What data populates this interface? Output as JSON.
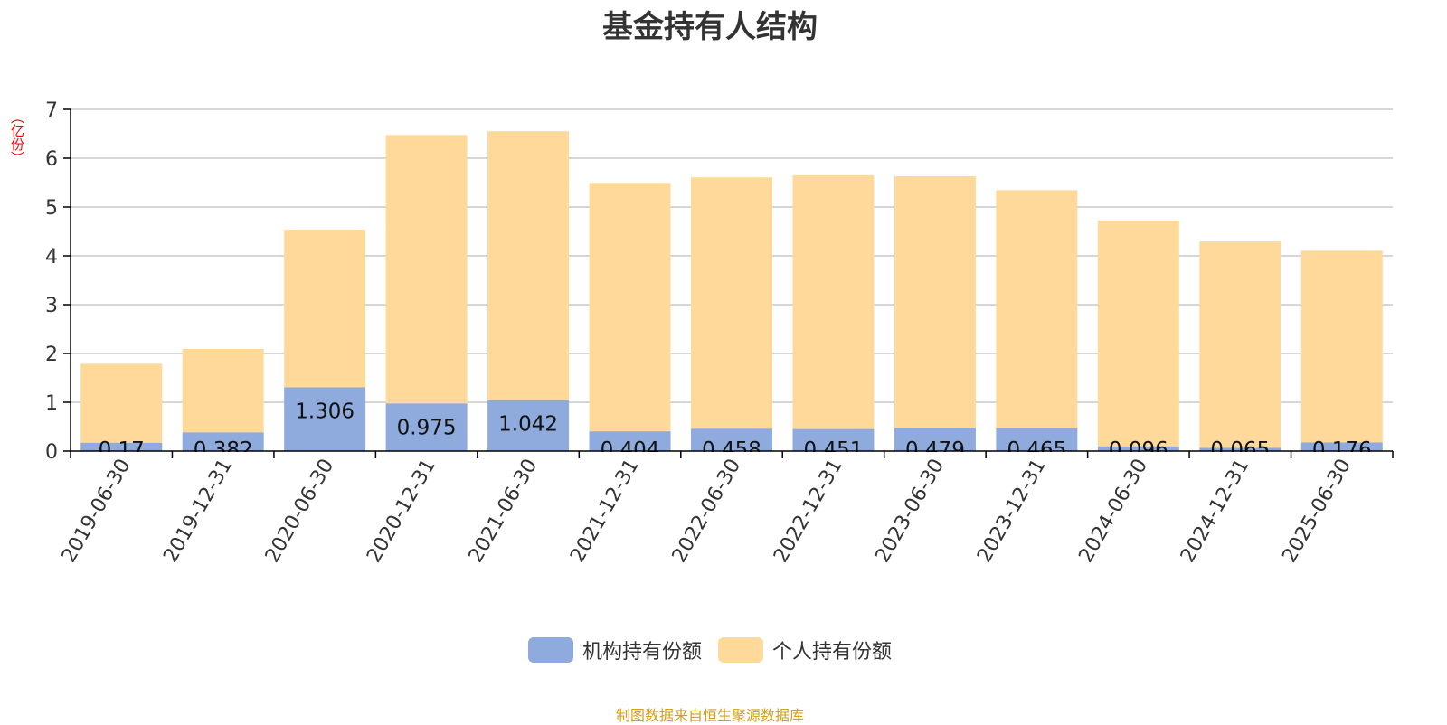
{
  "title": "基金持有人结构",
  "unit_label": "（亿份）",
  "source": "制图数据来自恒生聚源数据库",
  "colors": {
    "institutional": "#8faadc",
    "individual": "#ffd99a",
    "axis": "#000000",
    "grid": "#c8c8c8"
  },
  "legend": [
    {
      "label": "机构持有份额",
      "color": "#8faadc"
    },
    {
      "label": "个人持有份额",
      "color": "#ffd99a"
    }
  ],
  "chart_data": {
    "type": "bar",
    "stacked": true,
    "title": "基金持有人结构",
    "ylabel": "（亿份）",
    "xlabel": "",
    "ylim": [
      0,
      7
    ],
    "yticks": [
      0,
      1,
      2,
      3,
      4,
      5,
      6,
      7
    ],
    "grid": true,
    "legend_position": "bottom",
    "categories": [
      "2019-06-30",
      "2019-12-31",
      "2020-06-30",
      "2020-12-31",
      "2021-06-30",
      "2021-12-31",
      "2022-06-30",
      "2022-12-31",
      "2023-06-30",
      "2023-12-31",
      "2024-06-30",
      "2024-12-31",
      "2025-06-30"
    ],
    "series": [
      {
        "name": "机构持有份额",
        "values": [
          0.17,
          0.382,
          1.306,
          0.975,
          1.042,
          0.404,
          0.458,
          0.451,
          0.479,
          0.465,
          0.096,
          0.065,
          0.176
        ],
        "labels": [
          "0.17",
          "0.382",
          "1.306",
          "0.975",
          "1.042",
          "0.404",
          "0.458",
          "0.451",
          "0.479",
          "0.465",
          "0.096",
          "0.065",
          "0.176"
        ]
      },
      {
        "name": "个人持有份额",
        "values": [
          1.62,
          1.71,
          3.23,
          5.5,
          5.51,
          5.09,
          5.15,
          5.2,
          5.15,
          4.88,
          4.63,
          4.23,
          3.93
        ]
      }
    ]
  }
}
